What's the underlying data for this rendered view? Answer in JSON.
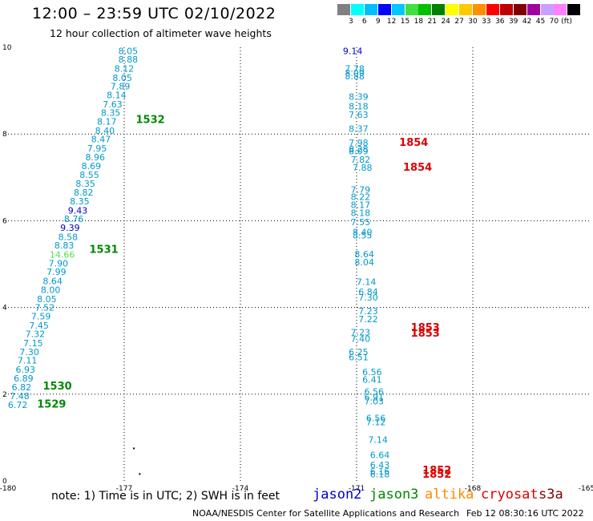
{
  "header": {
    "title": "12:00 – 23:59 UTC 02/10/2022",
    "subtitle": "12 hour collection of altimeter wave heights"
  },
  "legend": {
    "colors": [
      "#808080",
      "#00ffff",
      "#00bfff",
      "#0000ff",
      "#00c8ff",
      "#40e040",
      "#00c000",
      "#008000",
      "#ffff00",
      "#ffc800",
      "#ff9000",
      "#ff0000",
      "#c00000",
      "#800000",
      "#a000a0",
      "#c8a0ff",
      "#ff80ff",
      "#000000"
    ],
    "labels": [
      "3",
      "6",
      "9",
      "12",
      "15",
      "18",
      "21",
      "24",
      "27",
      "30",
      "33",
      "36",
      "39",
      "42",
      "45",
      "70"
    ],
    "unit": "(ft)"
  },
  "chart_data": {
    "type": "scatter",
    "title": "12:00 – 23:59 UTC 02/10/2022",
    "subtitle": "12 hour collection of altimeter wave heights",
    "xlim": [
      -180,
      -165
    ],
    "ylim": [
      0,
      10
    ],
    "x_ticks": [
      "-180",
      "-177",
      "-174",
      "-171",
      "-168",
      "-165"
    ],
    "y_ticks": [
      "0",
      "2",
      "4",
      "6",
      "8",
      "10"
    ],
    "grid": true,
    "series": [
      {
        "name": "jason3",
        "track": "west",
        "color": "#0099cc",
        "points": [
          {
            "x": -176.9,
            "y": 9.92,
            "label": "8.05"
          },
          {
            "x": -176.9,
            "y": 9.72,
            "label": "8.88"
          },
          {
            "x": -177.0,
            "y": 9.51,
            "label": "8.12"
          },
          {
            "x": -177.05,
            "y": 9.3,
            "label": "8.05"
          },
          {
            "x": -177.1,
            "y": 9.1,
            "label": "7.89"
          },
          {
            "x": -177.2,
            "y": 8.9,
            "label": "8.14"
          },
          {
            "x": -177.3,
            "y": 8.69,
            "label": "7.63"
          },
          {
            "x": -177.35,
            "y": 8.49,
            "label": "8.35"
          },
          {
            "x": -177.45,
            "y": 8.29,
            "label": "8.17"
          },
          {
            "x": -177.5,
            "y": 8.08,
            "label": "8.40"
          },
          {
            "x": -177.6,
            "y": 7.88,
            "label": "8.47"
          },
          {
            "x": -177.7,
            "y": 7.67,
            "label": "7.95"
          },
          {
            "x": -177.75,
            "y": 7.47,
            "label": "8.96"
          },
          {
            "x": -177.85,
            "y": 7.26,
            "label": "8.69"
          },
          {
            "x": -177.9,
            "y": 7.06,
            "label": "8.55"
          },
          {
            "x": -178.0,
            "y": 6.86,
            "label": "8.35"
          },
          {
            "x": -178.05,
            "y": 6.65,
            "label": "8.82"
          },
          {
            "x": -178.15,
            "y": 6.45,
            "label": "8.35"
          },
          {
            "x": -178.2,
            "y": 6.24,
            "label": "9.43",
            "color": "#0000cc"
          },
          {
            "x": -178.3,
            "y": 6.04,
            "label": "8.76"
          },
          {
            "x": -178.4,
            "y": 5.84,
            "label": "9.39",
            "color": "#0000cc"
          },
          {
            "x": -178.45,
            "y": 5.63,
            "label": "8.58"
          },
          {
            "x": -178.55,
            "y": 5.43,
            "label": "8.83"
          },
          {
            "x": -178.6,
            "y": 5.22,
            "label": "14.66",
            "color": "#55dd55"
          },
          {
            "x": -178.7,
            "y": 5.02,
            "label": "7.90"
          },
          {
            "x": -178.75,
            "y": 4.82,
            "label": "7.99"
          },
          {
            "x": -178.85,
            "y": 4.61,
            "label": "8.64"
          },
          {
            "x": -178.9,
            "y": 4.41,
            "label": "8.00"
          },
          {
            "x": -179.0,
            "y": 4.2,
            "label": "8.05"
          },
          {
            "x": -179.05,
            "y": 4.0,
            "label": "7.52"
          },
          {
            "x": -179.15,
            "y": 3.8,
            "label": "7.59"
          },
          {
            "x": -179.2,
            "y": 3.59,
            "label": "7.45"
          },
          {
            "x": -179.3,
            "y": 3.39,
            "label": "7.32"
          },
          {
            "x": -179.35,
            "y": 3.18,
            "label": "7.15"
          },
          {
            "x": -179.45,
            "y": 2.98,
            "label": "7.30"
          },
          {
            "x": -179.5,
            "y": 2.78,
            "label": "7.11"
          },
          {
            "x": -179.55,
            "y": 2.57,
            "label": "6.93"
          },
          {
            "x": -179.6,
            "y": 2.37,
            "label": "6.89"
          },
          {
            "x": -179.65,
            "y": 2.16,
            "label": "6.82"
          },
          {
            "x": -179.7,
            "y": 1.96,
            "label": "7.48"
          },
          {
            "x": -179.75,
            "y": 1.76,
            "label": "6.72"
          }
        ],
        "time_labels": [
          {
            "x": -176.7,
            "y": 8.35,
            "label": "1532"
          },
          {
            "x": -177.9,
            "y": 5.35,
            "label": "1531"
          },
          {
            "x": -179.1,
            "y": 2.2,
            "label": "1530"
          },
          {
            "x": -179.25,
            "y": 1.78,
            "label": "1529"
          }
        ]
      },
      {
        "name": "jason3",
        "track": "east",
        "color": "#0099cc",
        "points": [
          {
            "x": -171.1,
            "y": 9.92,
            "label": "9.14",
            "color": "#0000cc"
          },
          {
            "x": -171.05,
            "y": 9.51,
            "label": "7.78"
          },
          {
            "x": -171.05,
            "y": 9.41,
            "label": "8.09"
          },
          {
            "x": -171.05,
            "y": 9.33,
            "label": "8.88"
          },
          {
            "x": -170.95,
            "y": 8.86,
            "label": "8.39"
          },
          {
            "x": -170.95,
            "y": 8.64,
            "label": "8.18"
          },
          {
            "x": -170.95,
            "y": 8.45,
            "label": "7.63"
          },
          {
            "x": -170.95,
            "y": 8.12,
            "label": "8.37"
          },
          {
            "x": -170.95,
            "y": 7.8,
            "label": "7.98"
          },
          {
            "x": -170.95,
            "y": 7.65,
            "label": "8.28"
          },
          {
            "x": -170.95,
            "y": 7.61,
            "label": "8.09"
          },
          {
            "x": -170.9,
            "y": 7.41,
            "label": "7.82"
          },
          {
            "x": -170.85,
            "y": 7.23,
            "label": "7.88"
          },
          {
            "x": -170.9,
            "y": 6.72,
            "label": "7.79"
          },
          {
            "x": -170.9,
            "y": 6.55,
            "label": "8.22"
          },
          {
            "x": -170.9,
            "y": 6.37,
            "label": "8.17"
          },
          {
            "x": -170.9,
            "y": 6.18,
            "label": "8.18"
          },
          {
            "x": -170.9,
            "y": 5.97,
            "label": "7.55"
          },
          {
            "x": -170.85,
            "y": 5.74,
            "label": "8.40"
          },
          {
            "x": -170.85,
            "y": 5.67,
            "label": "8.55"
          },
          {
            "x": -170.8,
            "y": 5.23,
            "label": "8.64"
          },
          {
            "x": -170.8,
            "y": 5.05,
            "label": "8.04"
          },
          {
            "x": -170.75,
            "y": 4.59,
            "label": "7.14"
          },
          {
            "x": -170.7,
            "y": 4.36,
            "label": "6.84"
          },
          {
            "x": -170.7,
            "y": 4.23,
            "label": "7.30"
          },
          {
            "x": -170.7,
            "y": 3.92,
            "label": "7.23"
          },
          {
            "x": -170.7,
            "y": 3.73,
            "label": "7.22"
          },
          {
            "x": -170.9,
            "y": 3.43,
            "label": "7.23"
          },
          {
            "x": -170.9,
            "y": 3.28,
            "label": "7.40"
          },
          {
            "x": -170.95,
            "y": 2.98,
            "label": "6.25"
          },
          {
            "x": -170.95,
            "y": 2.86,
            "label": "6.51"
          },
          {
            "x": -170.6,
            "y": 2.51,
            "label": "6.56"
          },
          {
            "x": -170.6,
            "y": 2.34,
            "label": "6.41"
          },
          {
            "x": -170.55,
            "y": 2.06,
            "label": "6.56"
          },
          {
            "x": -170.55,
            "y": 1.93,
            "label": "6.91"
          },
          {
            "x": -170.55,
            "y": 1.84,
            "label": "7.03"
          },
          {
            "x": -170.5,
            "y": 1.45,
            "label": "6.56"
          },
          {
            "x": -170.5,
            "y": 1.36,
            "label": "7.12"
          },
          {
            "x": -170.45,
            "y": 0.95,
            "label": "7.14"
          },
          {
            "x": -170.4,
            "y": 0.6,
            "label": "6.64"
          },
          {
            "x": -170.4,
            "y": 0.37,
            "label": "6.43"
          },
          {
            "x": -170.4,
            "y": 0.22,
            "label": "6.16"
          },
          {
            "x": -170.4,
            "y": 0.16,
            "label": "6.18"
          }
        ],
        "time_labels": [
          {
            "x": -169.9,
            "y": 7.82,
            "label": "1854"
          },
          {
            "x": -169.8,
            "y": 7.25,
            "label": "1854"
          },
          {
            "x": -169.6,
            "y": 3.55,
            "label": "1853"
          },
          {
            "x": -169.6,
            "y": 3.42,
            "label": "1853"
          },
          {
            "x": -169.3,
            "y": 0.26,
            "label": "1852"
          },
          {
            "x": -169.3,
            "y": 0.17,
            "label": "1852"
          }
        ]
      }
    ],
    "stray_points": [
      {
        "x": -176.75,
        "y": 0.75
      },
      {
        "x": -176.6,
        "y": 0.16
      }
    ]
  },
  "note": "note:  1) Time is in UTC;  2) SWH is in feet",
  "satellites": [
    {
      "name": "jason2",
      "color": "#0000cc"
    },
    {
      "name": "jason3",
      "color": "#008800"
    },
    {
      "name": "altika",
      "color": "#ff8800"
    },
    {
      "name": "cryosat",
      "color": "#dd0000"
    },
    {
      "name": "s3a",
      "color": "#800000"
    }
  ],
  "footer": {
    "org": "NOAA/NESDIS Center for Satellite Applications and Research",
    "timestamp": "Feb 12 08:30:16 UTC 2022"
  }
}
